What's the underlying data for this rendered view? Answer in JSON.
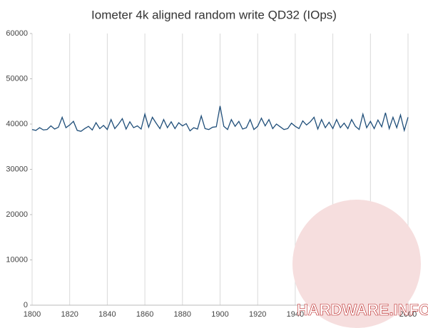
{
  "chart_data": {
    "type": "line",
    "title": "Iometer 4k aligned random write QD32 (IOps)",
    "watermark": "HARDWARE.INFO",
    "x": [
      1800,
      1802,
      1804,
      1806,
      1808,
      1810,
      1812,
      1814,
      1816,
      1818,
      1820,
      1822,
      1824,
      1826,
      1828,
      1830,
      1832,
      1834,
      1836,
      1838,
      1840,
      1842,
      1844,
      1846,
      1848,
      1850,
      1852,
      1854,
      1856,
      1858,
      1860,
      1862,
      1864,
      1866,
      1868,
      1870,
      1872,
      1874,
      1876,
      1878,
      1880,
      1882,
      1884,
      1886,
      1888,
      1890,
      1892,
      1894,
      1896,
      1898,
      1900,
      1902,
      1904,
      1906,
      1908,
      1910,
      1912,
      1914,
      1916,
      1918,
      1920,
      1922,
      1924,
      1926,
      1928,
      1930,
      1932,
      1934,
      1936,
      1938,
      1940,
      1942,
      1944,
      1946,
      1948,
      1950,
      1952,
      1954,
      1956,
      1958,
      1960,
      1962,
      1964,
      1966,
      1968,
      1970,
      1972,
      1974,
      1976,
      1978,
      1980,
      1982,
      1984,
      1986,
      1988,
      1990,
      1992,
      1994,
      1996,
      1998,
      2000
    ],
    "series": [
      {
        "name": "IOps",
        "color": "#1f4e79",
        "values": [
          38800,
          38600,
          39200,
          38700,
          38800,
          39600,
          38900,
          39300,
          41500,
          39200,
          39800,
          40600,
          38600,
          38400,
          39000,
          39500,
          38700,
          40300,
          39000,
          39700,
          38800,
          41000,
          39000,
          40000,
          41200,
          38900,
          40500,
          39200,
          39600,
          38900,
          42200,
          39300,
          41500,
          40200,
          39000,
          41000,
          39200,
          40500,
          39000,
          40300,
          39600,
          40100,
          38500,
          39200,
          38900,
          41800,
          39000,
          38800,
          39300,
          39400,
          44000,
          39500,
          38800,
          41000,
          39500,
          40600,
          38900,
          39200,
          41000,
          38800,
          39500,
          41300,
          39600,
          41000,
          39000,
          40000,
          39400,
          38800,
          39000,
          40200,
          39500,
          39000,
          40700,
          39800,
          40500,
          41500,
          38900,
          41000,
          39200,
          40400,
          39000,
          41000,
          39200,
          40200,
          39000,
          41000,
          39500,
          38800,
          42200,
          39200,
          40600,
          39000,
          40900,
          39400,
          42500,
          39000,
          41500,
          39200,
          42000,
          38600,
          41500
        ]
      }
    ],
    "xlim": [
      1800,
      2000
    ],
    "xticks": [
      1800,
      1820,
      1840,
      1860,
      1880,
      1900,
      1920,
      1940,
      1960,
      1980,
      2000
    ],
    "ylim": [
      0,
      60000
    ],
    "yticks": [
      0,
      10000,
      20000,
      30000,
      40000,
      50000,
      60000
    ],
    "grid": "x"
  }
}
